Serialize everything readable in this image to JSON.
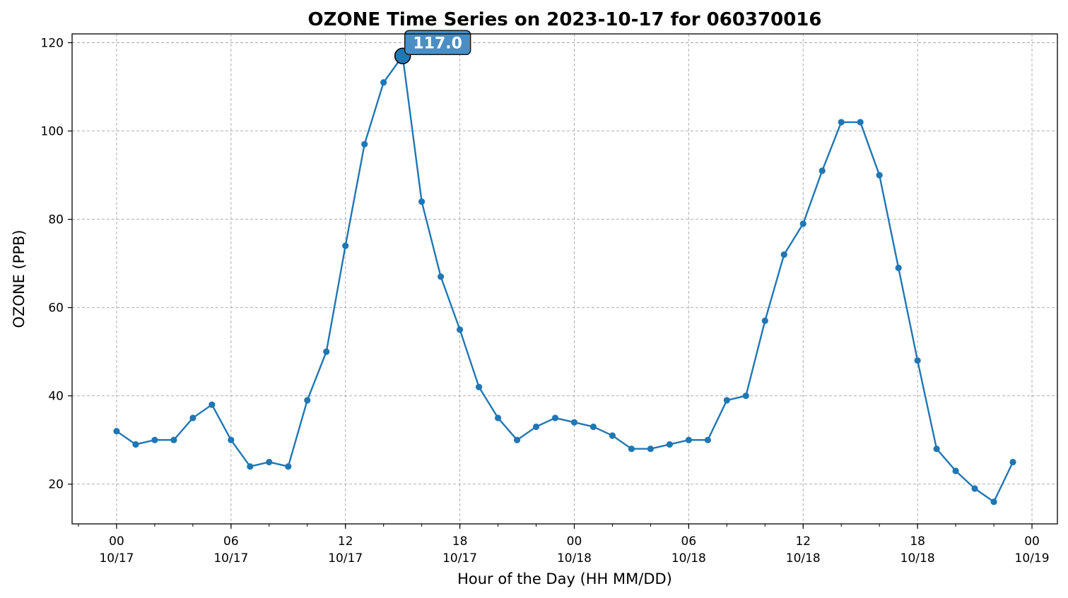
{
  "chart_data": {
    "type": "line",
    "title": "OZONE Time Series on 2023-10-17 for 060370016",
    "xlabel": "Hour of the Day (HH MM/DD)",
    "ylabel": "OZONE (PPB)",
    "ylim": [
      11,
      122
    ],
    "yticks": [
      20,
      40,
      60,
      80,
      100,
      120
    ],
    "xlim": [
      "2023-10-16 21:40",
      "2023-10-19 01:20"
    ],
    "xticks": [
      {
        "x": "2023-10-17 00:00",
        "hour": "00",
        "date": "10/17"
      },
      {
        "x": "2023-10-17 06:00",
        "hour": "06",
        "date": "10/17"
      },
      {
        "x": "2023-10-17 12:00",
        "hour": "12",
        "date": "10/17"
      },
      {
        "x": "2023-10-17 18:00",
        "hour": "18",
        "date": "10/17"
      },
      {
        "x": "2023-10-18 00:00",
        "hour": "00",
        "date": "10/18"
      },
      {
        "x": "2023-10-18 06:00",
        "hour": "06",
        "date": "10/18"
      },
      {
        "x": "2023-10-18 12:00",
        "hour": "12",
        "date": "10/18"
      },
      {
        "x": "2023-10-18 18:00",
        "hour": "18",
        "date": "10/18"
      },
      {
        "x": "2023-10-19 00:00",
        "hour": "00",
        "date": "10/19"
      }
    ],
    "grid": true,
    "series": [
      {
        "color": "#1f77b4",
        "x": [
          "2023-10-17 00:00",
          "2023-10-17 01:00",
          "2023-10-17 02:00",
          "2023-10-17 03:00",
          "2023-10-17 04:00",
          "2023-10-17 05:00",
          "2023-10-17 06:00",
          "2023-10-17 07:00",
          "2023-10-17 08:00",
          "2023-10-17 09:00",
          "2023-10-17 10:00",
          "2023-10-17 11:00",
          "2023-10-17 12:00",
          "2023-10-17 13:00",
          "2023-10-17 14:00",
          "2023-10-17 15:00",
          "2023-10-17 16:00",
          "2023-10-17 17:00",
          "2023-10-17 18:00",
          "2023-10-17 19:00",
          "2023-10-17 20:00",
          "2023-10-17 21:00",
          "2023-10-17 22:00",
          "2023-10-17 23:00",
          "2023-10-18 00:00",
          "2023-10-18 01:00",
          "2023-10-18 02:00",
          "2023-10-18 03:00",
          "2023-10-18 04:00",
          "2023-10-18 05:00",
          "2023-10-18 06:00",
          "2023-10-18 07:00",
          "2023-10-18 08:00",
          "2023-10-18 09:00",
          "2023-10-18 10:00",
          "2023-10-18 11:00",
          "2023-10-18 12:00",
          "2023-10-18 13:00",
          "2023-10-18 14:00",
          "2023-10-18 15:00",
          "2023-10-18 16:00",
          "2023-10-18 17:00",
          "2023-10-18 18:00",
          "2023-10-18 19:00",
          "2023-10-18 20:00",
          "2023-10-18 21:00",
          "2023-10-18 22:00",
          "2023-10-18 23:00"
        ],
        "values": [
          32,
          29,
          30,
          30,
          35,
          38,
          30,
          24,
          25,
          24,
          39,
          50,
          74,
          97,
          111,
          117,
          84,
          67,
          55,
          42,
          35,
          30,
          33,
          35,
          34,
          33,
          31,
          28,
          28,
          29,
          30,
          30,
          39,
          40,
          57,
          72,
          79,
          91,
          102,
          102,
          90,
          69,
          48,
          28,
          23,
          19,
          16,
          25
        ]
      }
    ],
    "annotation": {
      "x": "2023-10-17 15:00",
      "y": 117.0,
      "text": "117.0",
      "box_color": "#4a8ec4",
      "marker_color": "#1f77b4"
    }
  }
}
